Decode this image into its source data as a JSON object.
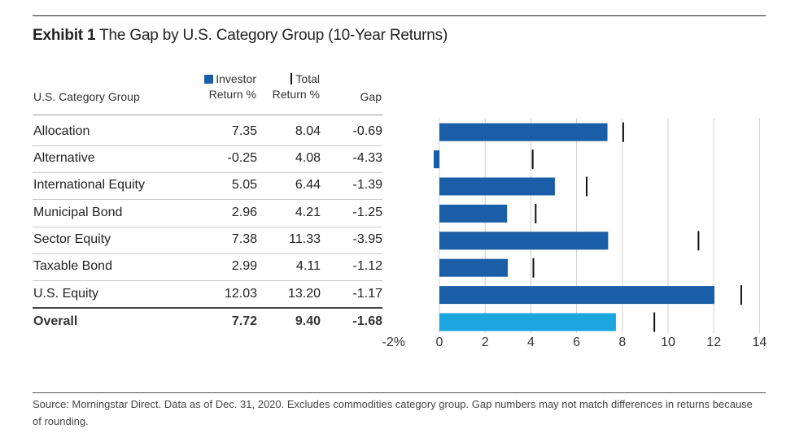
{
  "title": {
    "prefix": "Exhibit 1",
    "text": "The Gap by U.S. Category Group (10-Year Returns)"
  },
  "table": {
    "headers": {
      "category": "U.S. Category Group",
      "investor_line1": "Investor",
      "investor_line2": "Return %",
      "total_line1": "Total",
      "total_line2": "Return %",
      "gap": "Gap"
    },
    "rows": [
      {
        "category": "Allocation",
        "investor": "7.35",
        "total": "8.04",
        "gap": "-0.69"
      },
      {
        "category": "Alternative",
        "investor": "-0.25",
        "total": "4.08",
        "gap": "-4.33"
      },
      {
        "category": "International Equity",
        "investor": "5.05",
        "total": "6.44",
        "gap": "-1.39"
      },
      {
        "category": "Municipal Bond",
        "investor": "2.96",
        "total": "4.21",
        "gap": "-1.25"
      },
      {
        "category": "Sector Equity",
        "investor": "7.38",
        "total": "11.33",
        "gap": "-3.95"
      },
      {
        "category": "Taxable Bond",
        "investor": "2.99",
        "total": "4.11",
        "gap": "-1.12"
      },
      {
        "category": "U.S. Equity",
        "investor": "12.03",
        "total": "13.20",
        "gap": "-1.17"
      }
    ],
    "overall": {
      "category": "Overall",
      "investor": "7.72",
      "total": "9.40",
      "gap": "-1.68"
    }
  },
  "chart_data": {
    "type": "bar",
    "orientation": "horizontal",
    "categories": [
      "Allocation",
      "Alternative",
      "International Equity",
      "Municipal Bond",
      "Sector Equity",
      "Taxable Bond",
      "U.S. Equity",
      "Overall"
    ],
    "series": [
      {
        "name": "Investor Return %",
        "values": [
          7.35,
          -0.25,
          5.05,
          2.96,
          7.38,
          2.99,
          12.03,
          7.72
        ],
        "mark": "bar"
      },
      {
        "name": "Total Return %",
        "values": [
          8.04,
          4.08,
          6.44,
          4.21,
          11.33,
          4.11,
          13.2,
          9.4
        ],
        "mark": "tick"
      }
    ],
    "xlim": [
      -2,
      14
    ],
    "xticks": [
      -2,
      0,
      2,
      4,
      6,
      8,
      10,
      12,
      14
    ],
    "xtick_labels": [
      "-2%",
      "0",
      "2",
      "4",
      "6",
      "8",
      "10",
      "12",
      "14"
    ],
    "grid": true,
    "colors": {
      "bar": "#1a5ea8",
      "overall_bar": "#1ba6e0",
      "tick": "#111111",
      "grid": "#d0d0d0"
    }
  },
  "source": "Source: Morningstar Direct. Data as of Dec. 31, 2020. Excludes commodities category group. Gap numbers may not match differences in returns because of rounding."
}
